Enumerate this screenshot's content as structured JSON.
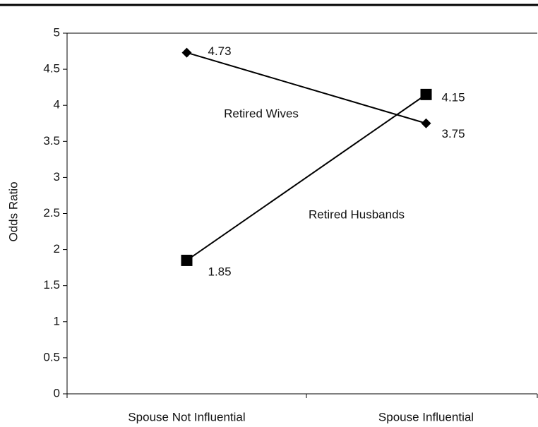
{
  "chart_data": {
    "type": "line",
    "categories": [
      "Spouse Not Influential",
      "Spouse Influential"
    ],
    "series": [
      {
        "name": "Retired Wives",
        "color": "#000000",
        "marker": "diamond",
        "values": [
          4.73,
          3.75
        ]
      },
      {
        "name": "Retired Husbands",
        "color": "#000000",
        "marker": "square",
        "values": [
          1.85,
          4.15
        ]
      }
    ],
    "y_label": "Odds Ratio",
    "ylim": [
      0,
      5
    ],
    "yticks": [
      0,
      0.5,
      1,
      1.5,
      2,
      2.5,
      3,
      3.5,
      4,
      4.5,
      5
    ],
    "grid": false
  }
}
